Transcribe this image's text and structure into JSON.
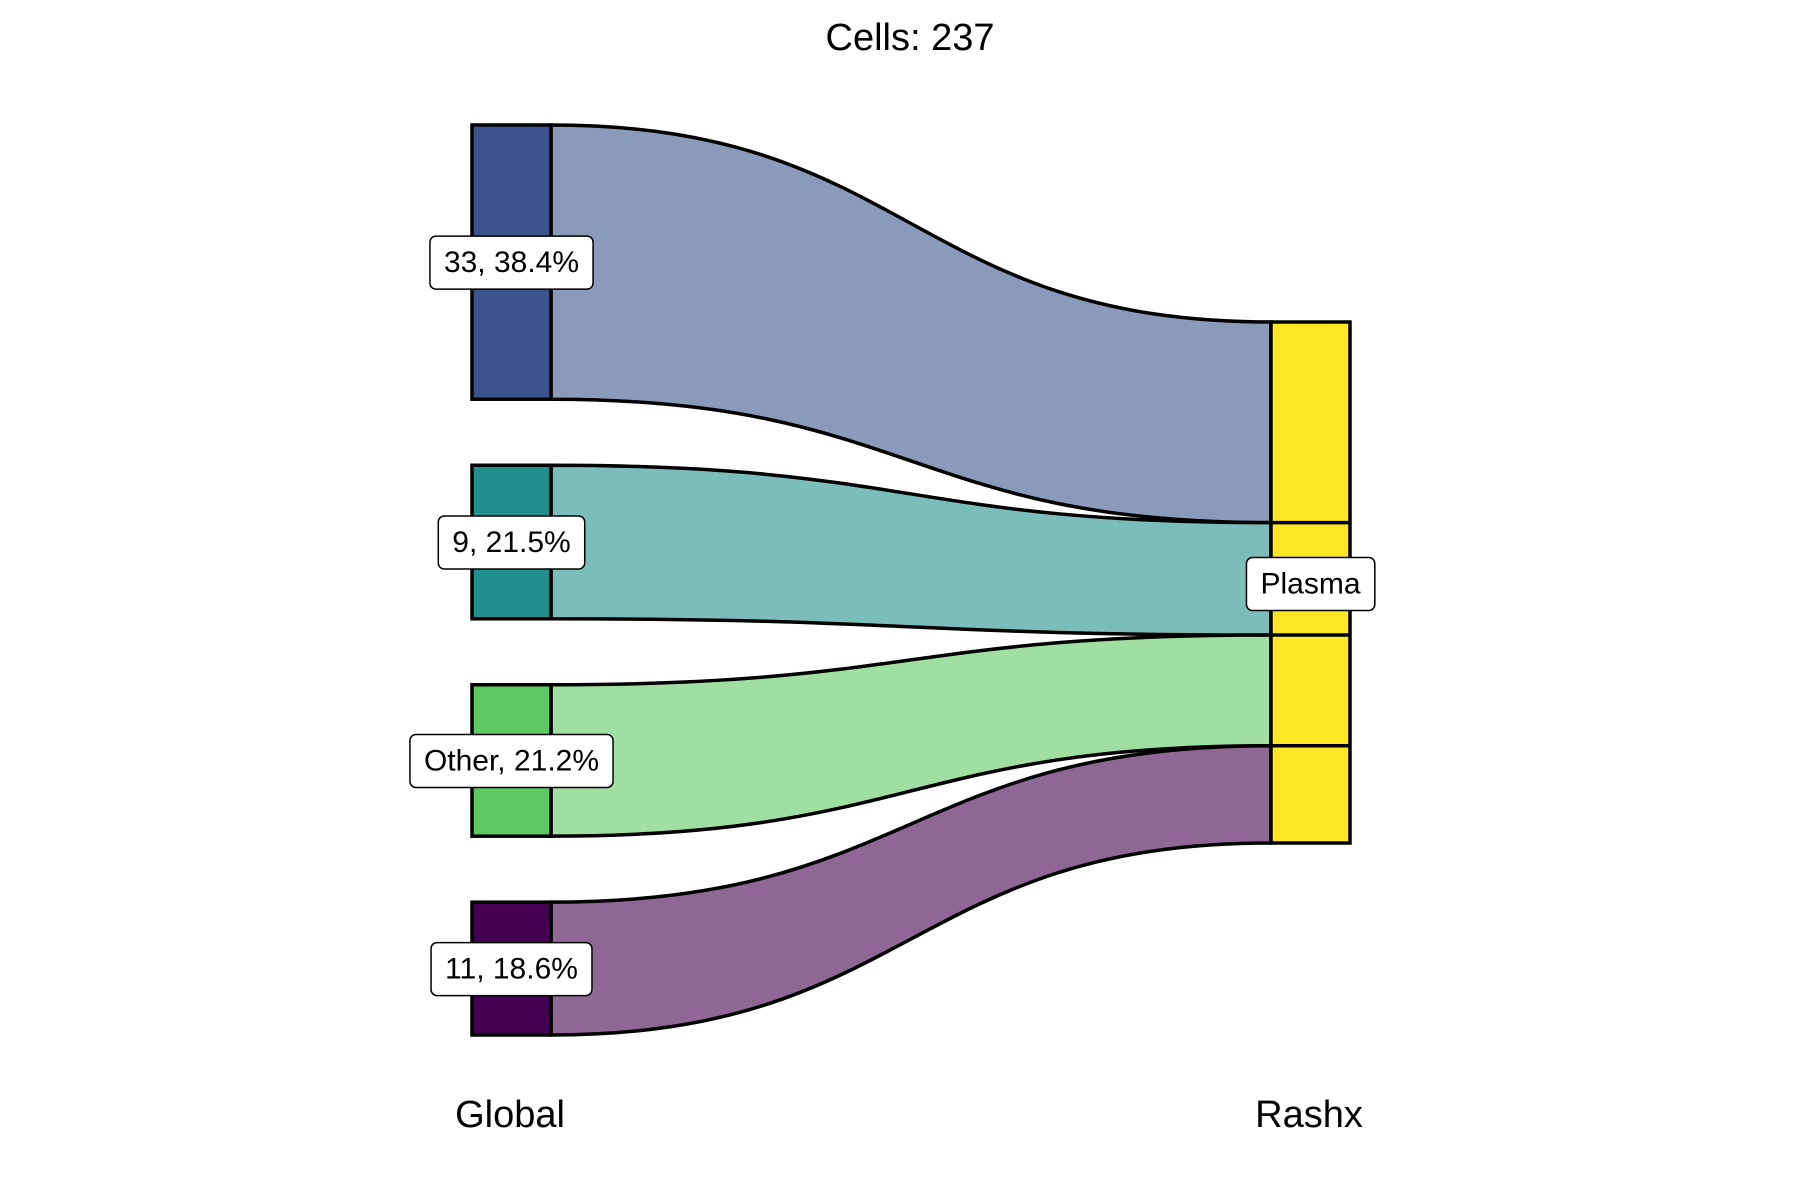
{
  "chart_data": {
    "type": "sankey",
    "title": "Cells:  237",
    "axes": [
      "Global",
      "Rashx"
    ],
    "source_nodes": [
      {
        "name": "33",
        "label": "33, 38.4%",
        "percent": 38.4,
        "color": "#3b528b",
        "flow_color": "#8a9ab9"
      },
      {
        "name": "9",
        "label": "9, 21.5%",
        "percent": 21.5,
        "color": "#21908c",
        "flow_color": "#7bbdba"
      },
      {
        "name": "Other",
        "label": "Other, 21.2%",
        "percent": 21.2,
        "color": "#5ec962",
        "flow_color": "#9fdfa1"
      },
      {
        "name": "11",
        "label": "11, 18.6%",
        "percent": 18.6,
        "color": "#440154",
        "flow_color": "#8e6795"
      }
    ],
    "target_nodes": [
      {
        "name": "Plasma",
        "label": "Plasma",
        "percent": 100,
        "color": "#fde725"
      }
    ],
    "flows": [
      {
        "from": "33",
        "to": "Plasma",
        "percent": 38.4
      },
      {
        "from": "9",
        "to": "Plasma",
        "percent": 21.5
      },
      {
        "from": "Other",
        "to": "Plasma",
        "percent": 21.2
      },
      {
        "from": "11",
        "to": "Plasma",
        "percent": 18.6
      }
    ]
  }
}
